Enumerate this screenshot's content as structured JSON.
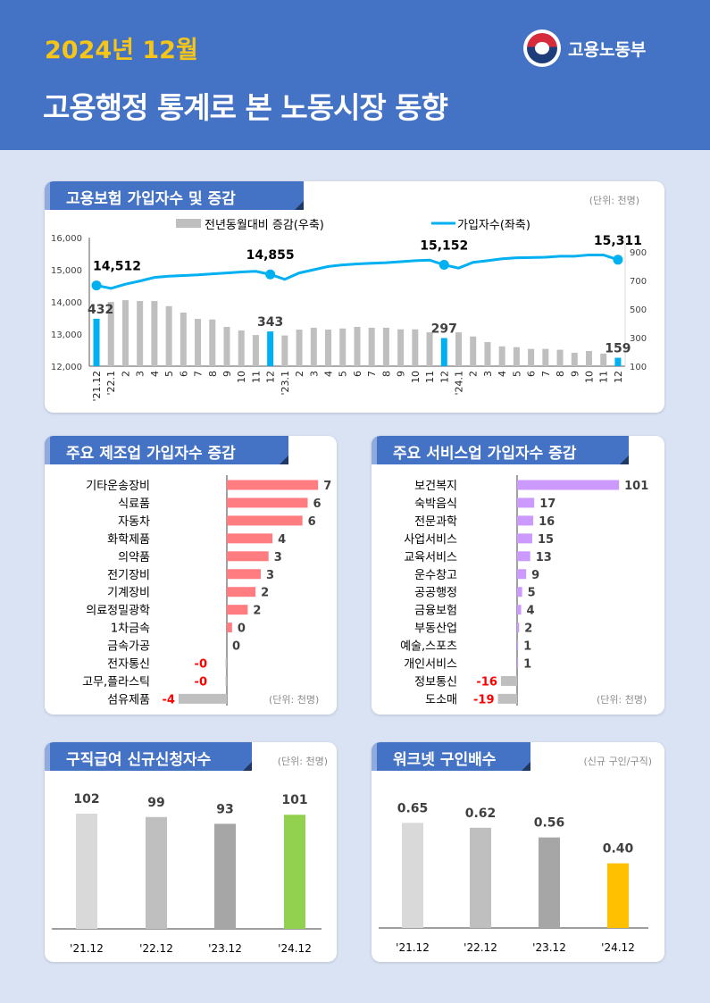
{
  "header": {
    "period": "2024년 12월",
    "title": "고용행정 통계로 본 노동시장 동향",
    "ministry": "고용노동부"
  },
  "colors": {
    "header_bg": "#4472c4",
    "year": "#f5c518",
    "line": "#00b0f0",
    "bar_gray": "#bfbfbf",
    "highlight_bar": "#00b0f0",
    "manufacturing_bar": "#ff7c80",
    "service_bar": "#cc99ff",
    "negative_label": "#ff0000",
    "claims_highlight": "#92d050",
    "ratio_highlight": "#ffc000"
  },
  "chart_data": [
    {
      "type": "bar+line",
      "title": "고용보험 가입자수 및 증감",
      "unit": "(단위: 천명)",
      "legend": {
        "bar": "전년동월대비 증감(우축)",
        "line": "가입자수(좌축)"
      },
      "x": [
        "'21.12",
        "'22.1",
        "2",
        "3",
        "4",
        "5",
        "6",
        "7",
        "8",
        "9",
        "10",
        "11",
        "12",
        "'23.1",
        "2",
        "3",
        "4",
        "5",
        "6",
        "7",
        "8",
        "9",
        "10",
        "11",
        "12",
        "'24.1",
        "2",
        "3",
        "4",
        "5",
        "6",
        "7",
        "8",
        "9",
        "10",
        "11",
        "12"
      ],
      "ylim_left": [
        12000,
        16000
      ],
      "yticks_left": [
        "12,000",
        "13,000",
        "14,000",
        "15,000",
        "16,000"
      ],
      "ylim_right": [
        100,
        1000
      ],
      "yticks_right": [
        "100",
        "300",
        "500",
        "700",
        "900"
      ],
      "series": [
        {
          "name": "가입자수(좌축)",
          "axis": "left",
          "values": [
            14512,
            14420,
            14550,
            14650,
            14760,
            14800,
            14820,
            14840,
            14870,
            14900,
            14930,
            14950,
            14855,
            14700,
            14900,
            15000,
            15100,
            15150,
            15180,
            15200,
            15220,
            15250,
            15280,
            15300,
            15152,
            15050,
            15230,
            15280,
            15340,
            15370,
            15380,
            15390,
            15420,
            15420,
            15460,
            15460,
            15311
          ]
        },
        {
          "name": "전년동월대비 증감(우축)",
          "axis": "right",
          "values": [
            432,
            550,
            562,
            556,
            556,
            520,
            475,
            431,
            427,
            375,
            350,
            318,
            343,
            315,
            356,
            369,
            356,
            364,
            375,
            369,
            369,
            358,
            358,
            337,
            297,
            337,
            308,
            269,
            239,
            233,
            221,
            221,
            215,
            194,
            206,
            188,
            159
          ]
        }
      ],
      "line_labels": {
        "0": "14,512",
        "12": "14,855",
        "24": "15,152",
        "36": "15,311"
      },
      "bar_labels": {
        "0": "432",
        "12": "343",
        "24": "297",
        "36": "159"
      }
    },
    {
      "type": "hbar",
      "title": "주요 제조업 가입자수 증감",
      "unit": "(단위: 천명)",
      "categories": [
        "기타운송장비",
        "식료품",
        "자동차",
        "화학제품",
        "의약품",
        "전기장비",
        "기계장비",
        "의료정밀광학",
        "1차금속",
        "금속가공",
        "전자통신",
        "고무,플라스틱",
        "섬유제품"
      ],
      "values": [
        7.0,
        6.2,
        5.8,
        3.5,
        3.2,
        2.6,
        2.2,
        1.6,
        0.4,
        0.0,
        -0.1,
        -0.1,
        -3.7
      ],
      "labels": [
        "7",
        "6",
        "6",
        "4",
        "3",
        "3",
        "2",
        "2",
        "0",
        "0",
        "-0",
        "-0",
        "-4"
      ]
    },
    {
      "type": "hbar",
      "title": "주요 서비스업 가입자수 증감",
      "unit": "(단위: 천명)",
      "categories": [
        "보건복지",
        "숙박음식",
        "전문과학",
        "사업서비스",
        "교육서비스",
        "운수창고",
        "공공행정",
        "금융보험",
        "부동산업",
        "예술,스포츠",
        "개인서비스",
        "정보통신",
        "도소매"
      ],
      "values": [
        101,
        17,
        16,
        15,
        13,
        9,
        5,
        4,
        2,
        1,
        1,
        -16,
        -19
      ],
      "labels": [
        "101",
        "17",
        "16",
        "15",
        "13",
        "9",
        "5",
        "4",
        "2",
        "1",
        "1",
        "-16",
        "-19"
      ]
    },
    {
      "type": "bar",
      "title": "구직급여 신규신청자수",
      "unit": "(단위: 천명)",
      "categories": [
        "'21.12",
        "'22.12",
        "'23.12",
        "'24.12"
      ],
      "values": [
        102,
        99,
        93,
        101
      ],
      "labels": [
        "102",
        "99",
        "93",
        "101"
      ],
      "bar_colors": [
        "#d9d9d9",
        "#bfbfbf",
        "#a6a6a6",
        "#92d050"
      ]
    },
    {
      "type": "bar",
      "title": "워크넷 구인배수",
      "unit": "(신규 구인/구직)",
      "categories": [
        "'21.12",
        "'22.12",
        "'23.12",
        "'24.12"
      ],
      "values": [
        0.65,
        0.62,
        0.56,
        0.4
      ],
      "labels": [
        "0.65",
        "0.62",
        "0.56",
        "0.40"
      ],
      "bar_colors": [
        "#d9d9d9",
        "#bfbfbf",
        "#a6a6a6",
        "#ffc000"
      ]
    }
  ]
}
